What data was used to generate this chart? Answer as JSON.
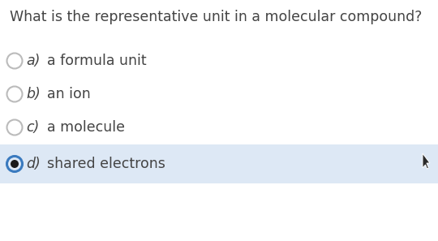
{
  "question": "What is the representative unit in a molecular compound?",
  "options": [
    {
      "label": "a)",
      "text": "a formula unit",
      "selected": false
    },
    {
      "label": "b)",
      "text": "an ion",
      "selected": false
    },
    {
      "label": "c)",
      "text": "a molecule",
      "selected": false
    },
    {
      "label": "d)",
      "text": "shared electrons",
      "selected": true
    }
  ],
  "bg_color": "#ffffff",
  "selected_bg_color": "#dde8f5",
  "question_color": "#444444",
  "option_text_color": "#444444",
  "label_color": "#444444",
  "circle_color": "#bbbbbb",
  "selected_circle_outer": "#3a7abf",
  "selected_circle_inner": "#1a1a1a",
  "question_fontsize": 12.5,
  "option_fontsize": 12.5,
  "label_fontsize": 12.5,
  "figwidth": 5.4,
  "figheight": 2.97,
  "dpi": 100
}
